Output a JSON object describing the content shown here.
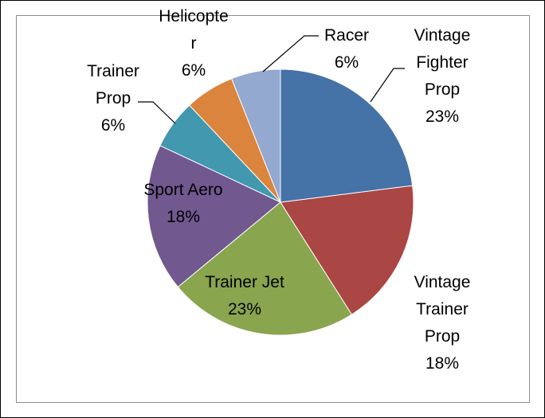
{
  "chart_data": {
    "type": "pie",
    "categories": [
      "Vintage Fighter Prop",
      "Vintage Trainer Prop",
      "Trainer Jet",
      "Sport Aero",
      "Trainer Prop",
      "Helicopter",
      "Racer"
    ],
    "values": [
      23,
      18,
      23,
      18,
      6,
      6,
      6
    ],
    "value_labels": [
      "23%",
      "18%",
      "23%",
      "18%",
      "6%",
      "6%",
      "6%"
    ],
    "colors": [
      "#4572a7",
      "#aa4643",
      "#89a54e",
      "#71588f",
      "#4198af",
      "#db843d",
      "#93a9cf"
    ]
  }
}
